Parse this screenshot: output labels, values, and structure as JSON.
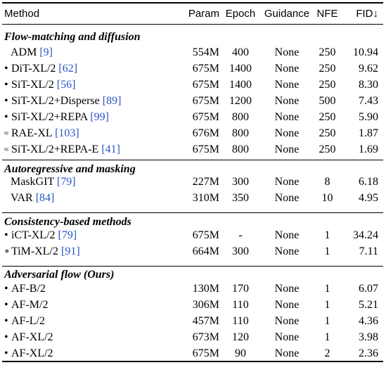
{
  "header": {
    "method": "Method",
    "param": "Param",
    "epoch": "Epoch",
    "guidance": "Guidance",
    "nfe": "NFE",
    "fid": "FID↓"
  },
  "sections": [
    {
      "title": "Flow-matching and diffusion",
      "rows": [
        {
          "marker": "",
          "name": "ADM",
          "ref": "[9]",
          "param": "554M",
          "epoch": "400",
          "guidance": "None",
          "nfe": "250",
          "fid": "10.94"
        },
        {
          "marker": "•",
          "name": "DiT-XL/2",
          "ref": "[62]",
          "param": "675M",
          "epoch": "1400",
          "guidance": "None",
          "nfe": "250",
          "fid": "9.62"
        },
        {
          "marker": "•",
          "name": "SiT-XL/2",
          "ref": "[56]",
          "param": "675M",
          "epoch": "1400",
          "guidance": "None",
          "nfe": "250",
          "fid": "8.30"
        },
        {
          "marker": "•",
          "name": "SiT-XL/2+Disperse",
          "ref": "[89]",
          "param": "675M",
          "epoch": "1200",
          "guidance": "None",
          "nfe": "500",
          "fid": "7.43"
        },
        {
          "marker": "•",
          "name": "SiT-XL/2+REPA",
          "ref": "[99]",
          "param": "675M",
          "epoch": "800",
          "guidance": "None",
          "nfe": "250",
          "fid": "5.90"
        },
        {
          "marker": "≈",
          "name": "RAE-XL",
          "ref": "[103]",
          "param": "676M",
          "epoch": "800",
          "guidance": "None",
          "nfe": "250",
          "fid": "1.87"
        },
        {
          "marker": "≈",
          "name": "SiT-XL/2+REPA-E",
          "ref": "[41]",
          "param": "675M",
          "epoch": "800",
          "guidance": "None",
          "nfe": "250",
          "fid": "1.69"
        }
      ]
    },
    {
      "title": "Autoregressive and masking",
      "rows": [
        {
          "marker": "",
          "name": "MaskGIT",
          "ref": "[79]",
          "param": "227M",
          "epoch": "300",
          "guidance": "None",
          "nfe": "8",
          "fid": "6.18"
        },
        {
          "marker": "",
          "name": "VAR",
          "ref": "[84]",
          "param": "310M",
          "epoch": "350",
          "guidance": "None",
          "nfe": "10",
          "fid": "4.95"
        }
      ]
    },
    {
      "title": "Consistency-based methods",
      "rows": [
        {
          "marker": "•",
          "name": "iCT-XL/2",
          "ref": "[79]",
          "param": "675M",
          "epoch": "-",
          "guidance": "None",
          "nfe": "1",
          "fid": "34.24"
        },
        {
          "marker": "∘",
          "name": "TiM-XL/2",
          "ref": "[91]",
          "param": "664M",
          "epoch": "300",
          "guidance": "None",
          "nfe": "1",
          "fid": "7.11"
        }
      ]
    },
    {
      "title": "Adversarial flow (Ours)",
      "rows": [
        {
          "marker": "•",
          "name": "AF-B/2",
          "ref": "",
          "param": "130M",
          "epoch": "170",
          "guidance": "None",
          "nfe": "1",
          "fid": "6.07"
        },
        {
          "marker": "•",
          "name": "AF-M/2",
          "ref": "",
          "param": "306M",
          "epoch": "110",
          "guidance": "None",
          "nfe": "1",
          "fid": "5.21"
        },
        {
          "marker": "•",
          "name": "AF-L/2",
          "ref": "",
          "param": "457M",
          "epoch": "110",
          "guidance": "None",
          "nfe": "1",
          "fid": "4.36"
        },
        {
          "marker": "•",
          "name": "AF-XL/2",
          "ref": "",
          "param": "673M",
          "epoch": "120",
          "guidance": "None",
          "nfe": "1",
          "fid": "3.98"
        },
        {
          "marker": "•",
          "name": "AF-XL/2",
          "ref": "",
          "param": "675M",
          "epoch": "90",
          "guidance": "None",
          "nfe": "2",
          "fid": "2.36"
        }
      ]
    }
  ],
  "colors": {
    "citation": "#2a55c4",
    "rules": "#000000"
  }
}
